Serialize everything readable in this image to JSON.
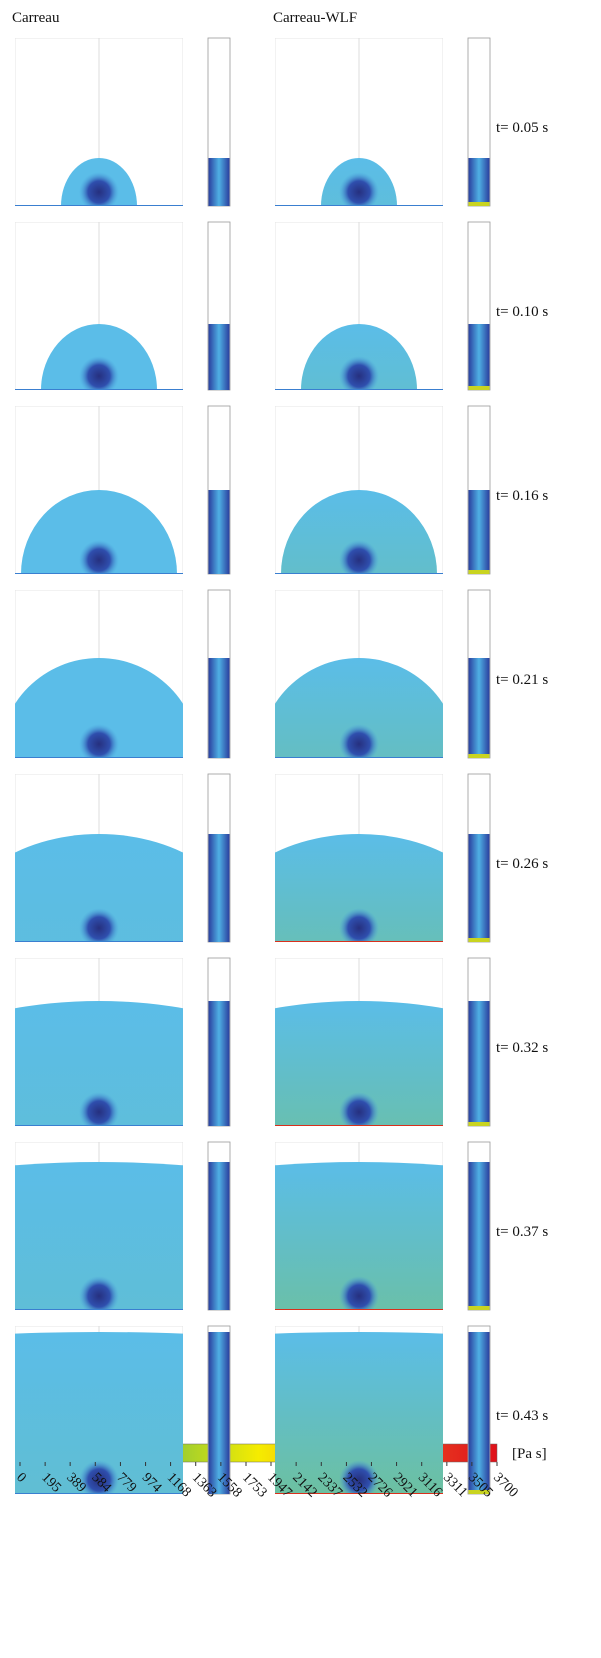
{
  "headers": [
    "Carreau",
    "Carreau-WLF"
  ],
  "rows": [
    {
      "time": "t= 0.05 s"
    },
    {
      "time": "t= 0.10 s"
    },
    {
      "time": "t= 0.16 s"
    },
    {
      "time": "t= 0.21 s"
    },
    {
      "time": "t= 0.26 s"
    },
    {
      "time": "t= 0.32 s"
    },
    {
      "time": "t= 0.37 s"
    },
    {
      "time": "t= 0.43 s"
    }
  ],
  "colorbar": {
    "range": [
      0,
      3700
    ],
    "ticks": [
      0,
      195,
      389,
      584,
      779,
      974,
      1168,
      1363,
      1558,
      1753,
      1947,
      2142,
      2337,
      2532,
      2726,
      2921,
      3116,
      3311,
      3505,
      3700
    ],
    "unit": "[Pa s]"
  }
}
